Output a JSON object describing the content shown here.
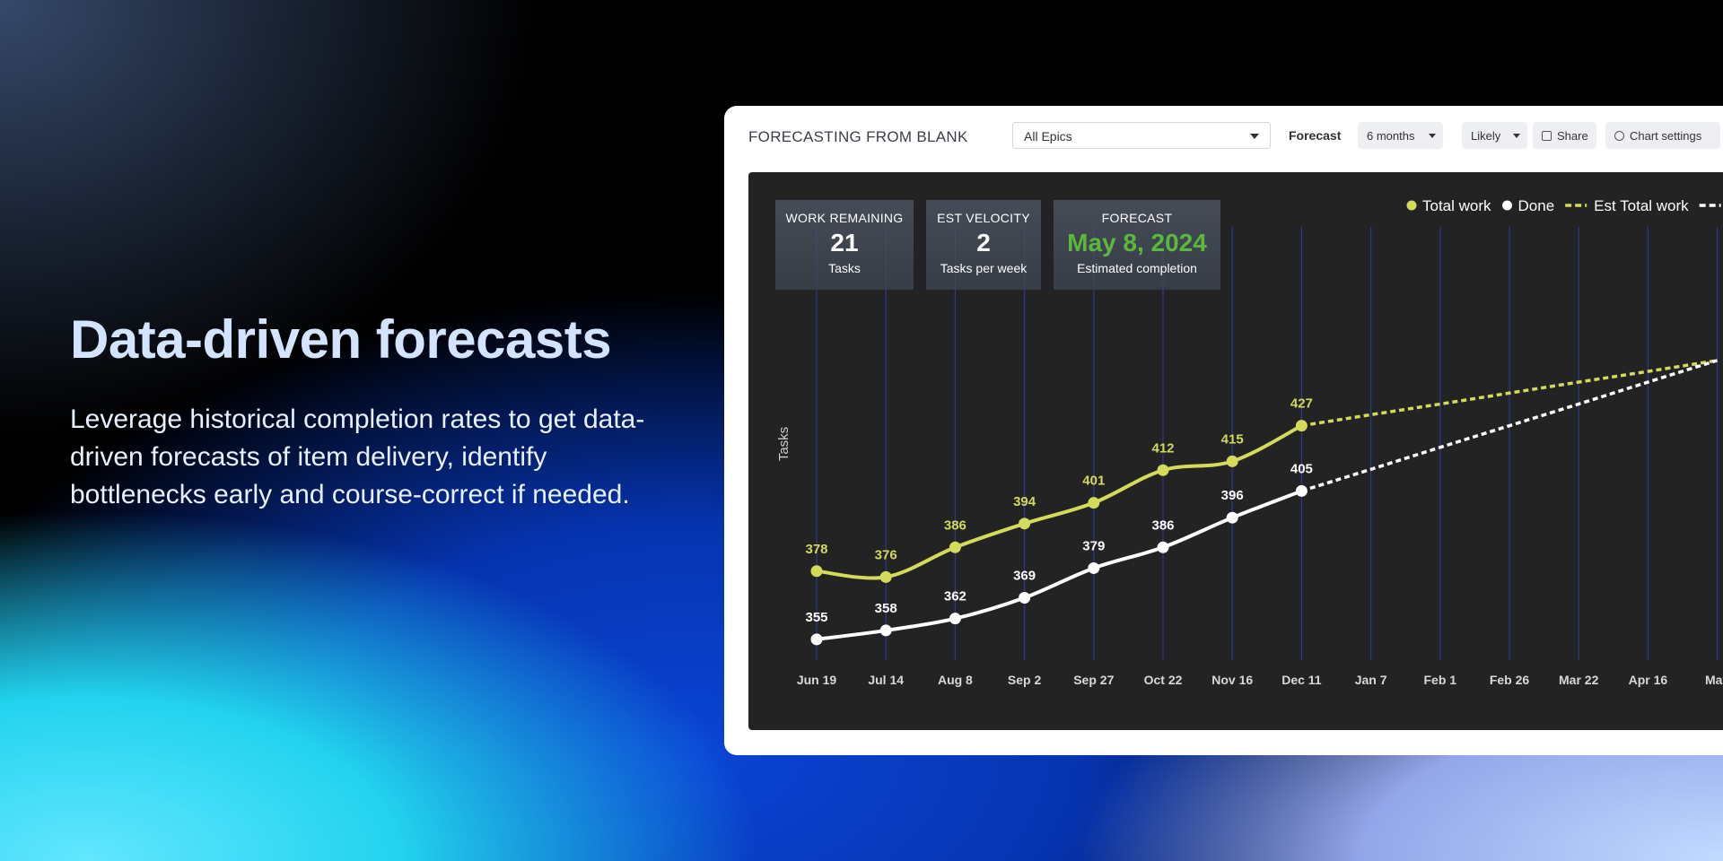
{
  "hero": {
    "title": "Data-driven forecasts",
    "text": "Leverage historical completion rates to get data-driven forecasts of item delivery, identify bottlenecks early and course-correct if needed."
  },
  "toolbar": {
    "title": "FORECASTING FROM BLANK",
    "epic_select": "All Epics",
    "forecast_label": "Forecast",
    "range": "6 months",
    "scenario": "Likely",
    "share": "Share",
    "settings": "Chart settings"
  },
  "stats": [
    {
      "label": "WORK REMAINING",
      "value": 21,
      "caption": "Tasks"
    },
    {
      "label": "EST VELOCITY",
      "value": 2,
      "caption": "Tasks per week"
    },
    {
      "label": "FORECAST",
      "value": "May 8, 2024",
      "caption": "Estimated completion"
    }
  ],
  "chart_data": {
    "type": "line",
    "y_label": "Tasks",
    "categories": [
      "Jun 19",
      "Jul 14",
      "Aug 8",
      "Sep 2",
      "Sep 27",
      "Oct 22",
      "Nov 16",
      "Dec 11",
      "Jan 7",
      "Feb 1",
      "Feb 26",
      "Mar 22",
      "Apr 16",
      "May"
    ],
    "ylim": [
      348,
      494
    ],
    "grid": true,
    "series": [
      {
        "name": "Total work",
        "color": "#d4db5a",
        "line_style": "solid",
        "markers": true,
        "values": [
          378,
          376,
          386,
          394,
          401,
          412,
          415,
          427,
          null,
          null,
          null,
          null,
          null,
          null
        ]
      },
      {
        "name": "Done",
        "color": "#ffffff",
        "line_style": "solid",
        "markers": true,
        "values": [
          355,
          358,
          362,
          369,
          379,
          386,
          396,
          405,
          null,
          null,
          null,
          null,
          null,
          null
        ]
      },
      {
        "name": "Est Total work",
        "color": "#d4db5a",
        "line_style": "dashed",
        "markers": false,
        "values": [
          null,
          null,
          null,
          null,
          null,
          null,
          null,
          427,
          430.7,
          434.3,
          438,
          441.7,
          445.3,
          449
        ]
      },
      {
        "color": "#ffffff",
        "line_style": "dashed",
        "markers": false,
        "values": [
          null,
          null,
          null,
          null,
          null,
          null,
          null,
          405,
          412.3,
          419.7,
          427,
          434.3,
          441.7,
          449
        ]
      }
    ]
  }
}
